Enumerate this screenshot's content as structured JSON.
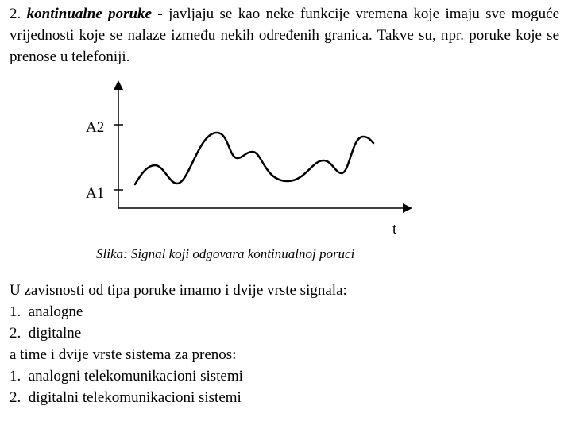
{
  "intro": {
    "number": "2.",
    "term": "kontinualne poruke",
    "rest": " - javljaju se kao neke funkcije vremena koje imaju sve moguće vrijednosti koje se nalaze između nekih određenih granica. Takve su, npr. poruke koje se prenose u telefoniji."
  },
  "figure": {
    "y_labels": [
      "A2",
      "A1"
    ],
    "x_label": "t",
    "caption": "Slika: Signal koji odgovara kontinualnoj poruci"
  },
  "lower": {
    "line1": "U zavisnosti od tipa poruke imamo i dvije vrste signala:",
    "list1": [
      {
        "num": "1.",
        "text": "analogne"
      },
      {
        "num": "2.",
        "text": "digitalne"
      }
    ],
    "line2": "a time i dvije vrste sistema za prenos:",
    "list2": [
      {
        "num": "1.",
        "text": "analogni telekomunikacioni sistemi"
      },
      {
        "num": "2.",
        "text": "digitalni telekomunikacioni sistemi"
      }
    ]
  }
}
